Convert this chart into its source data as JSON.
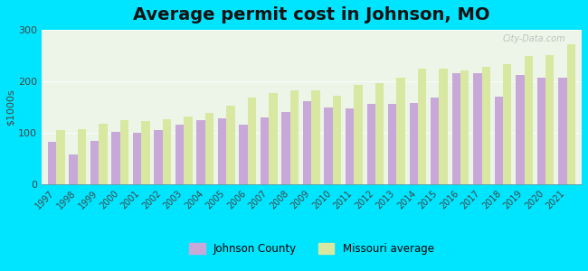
{
  "title": "Average permit cost in Johnson, MO",
  "ylabel": "$1000s",
  "years": [
    1997,
    1998,
    1999,
    2000,
    2001,
    2002,
    2003,
    2004,
    2005,
    2006,
    2007,
    2008,
    2009,
    2010,
    2011,
    2012,
    2013,
    2014,
    2015,
    2016,
    2017,
    2018,
    2019,
    2020,
    2021
  ],
  "johnson_county": [
    83,
    58,
    85,
    102,
    100,
    105,
    115,
    125,
    128,
    115,
    130,
    140,
    162,
    150,
    148,
    157,
    157,
    158,
    168,
    215,
    215,
    170,
    213,
    207,
    207
  ],
  "missouri_avg": [
    105,
    107,
    118,
    124,
    123,
    127,
    132,
    138,
    153,
    168,
    177,
    183,
    182,
    172,
    193,
    197,
    207,
    225,
    224,
    221,
    228,
    233,
    250,
    251,
    272
  ],
  "johnson_color": "#c8a8d8",
  "missouri_color": "#d8e8a0",
  "plot_bg": "#edf5e8",
  "outer_bg": "#00e5ff",
  "ylim": [
    0,
    300
  ],
  "yticks": [
    0,
    100,
    200,
    300
  ],
  "title_fontsize": 14,
  "legend_johnson": "Johnson County",
  "legend_missouri": "Missouri average"
}
